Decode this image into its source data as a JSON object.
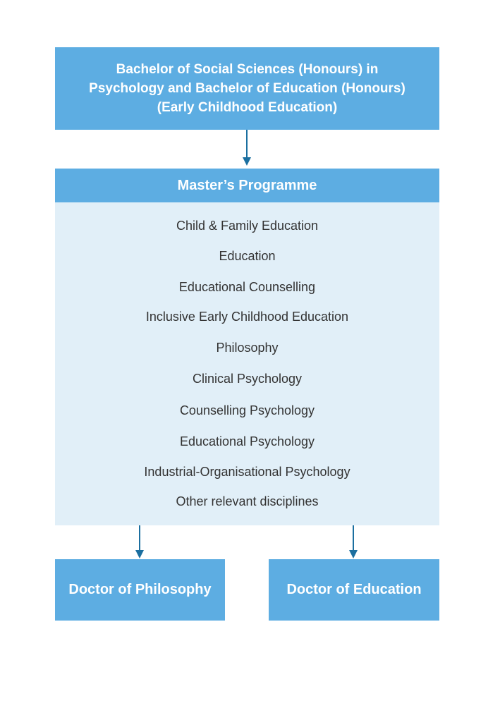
{
  "top_box": {
    "lines": [
      "Bachelor of Social Sciences (Honours) in",
      "Psychology and Bachelor of Education (Honours)",
      "(Early Childhood Education)"
    ]
  },
  "masters": {
    "title": "Master’s Programme",
    "items": [
      "Child & Family Education",
      "Education",
      "Educational Counselling",
      "Inclusive Early Childhood Education",
      "Philosophy",
      "Clinical Psychology",
      "Counselling Psychology",
      "Educational Psychology",
      "Industrial-Organisational Psychology",
      "Other relevant disciplines"
    ]
  },
  "doctorates": {
    "left": "Doctor of Philosophy",
    "right": "Doctor of Education"
  },
  "colors": {
    "box": "#5dade2",
    "panel": "#e1eff8",
    "arrow": "#1b6fa0",
    "text": "#333333"
  }
}
